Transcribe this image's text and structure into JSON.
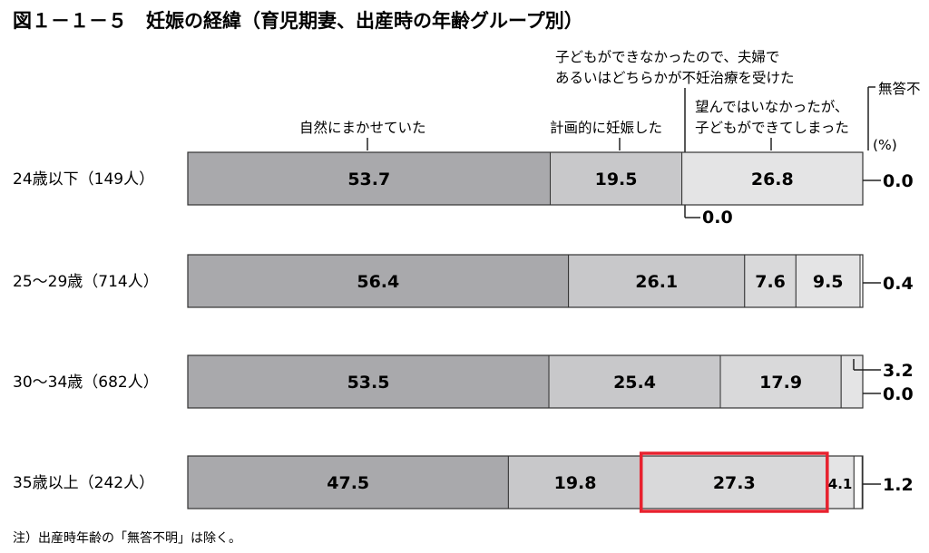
{
  "title": "図１－１－５　妊娠の経緯（育児期妻、出産時の年齢グループ別）",
  "unit": "(%)",
  "note": "注）出産時年齢の「無答不明」は除く。",
  "legend_annotations": {
    "natural": "自然にまかせていた",
    "planned": "計画的に妊娠した",
    "infertility_line1": "子どもができなかったので、夫婦で",
    "infertility_line2": "あるいはどちらかが不妊治療を受けた",
    "unwanted_line1": "望んではいなかったが、",
    "unwanted_line2": "子どもができてしまった",
    "noanswer": "無答不"
  },
  "colors": {
    "natural": "#a9a9ac",
    "planned": "#c8c8ca",
    "infertility": "#d9d9da",
    "unwanted": "#e4e4e5",
    "noanswer": "#ffffff",
    "highlight": "#e8222f"
  },
  "chart_data": {
    "type": "bar",
    "orientation": "horizontal",
    "stacked": true,
    "title": "妊娠の経緯（育児期妻、出産時の年齢グループ別）",
    "categories": [
      "24歳以下（149人）",
      "25〜29歳（714人）",
      "30〜34歳（682人）",
      "35歳以上（242人）"
    ],
    "series": [
      {
        "name": "自然にまかせていた",
        "values": [
          53.7,
          56.4,
          53.5,
          47.5
        ]
      },
      {
        "name": "計画的に妊娠した",
        "values": [
          19.5,
          26.1,
          25.4,
          19.8
        ]
      },
      {
        "name": "子どもができなかったので、夫婦であるいはどちらかが不妊治療を受けた",
        "values": [
          0.0,
          7.6,
          17.9,
          27.3
        ]
      },
      {
        "name": "望んではいなかったが、子どもができてしまった",
        "values": [
          26.8,
          9.5,
          3.2,
          4.1
        ]
      },
      {
        "name": "無答不",
        "values": [
          0.0,
          0.4,
          0.0,
          1.2
        ]
      }
    ],
    "xlim": [
      0,
      100
    ],
    "segment_labels": [
      [
        "53.7",
        "19.5",
        "",
        "26.8",
        ""
      ],
      [
        "56.4",
        "26.1",
        "7.6",
        "9.5",
        ""
      ],
      [
        "53.5",
        "25.4",
        "17.9",
        "",
        ""
      ],
      [
        "47.5",
        "19.8",
        "27.3",
        "4.1",
        ""
      ]
    ],
    "side_labels": [
      [
        "0.0"
      ],
      [
        "0.4"
      ],
      [
        "3.2",
        "0.0"
      ],
      [
        "1.2"
      ]
    ],
    "callout_labels": [
      {
        "row": 0,
        "text": "0.0"
      }
    ],
    "highlighted": {
      "row": 3,
      "series": 2
    }
  }
}
